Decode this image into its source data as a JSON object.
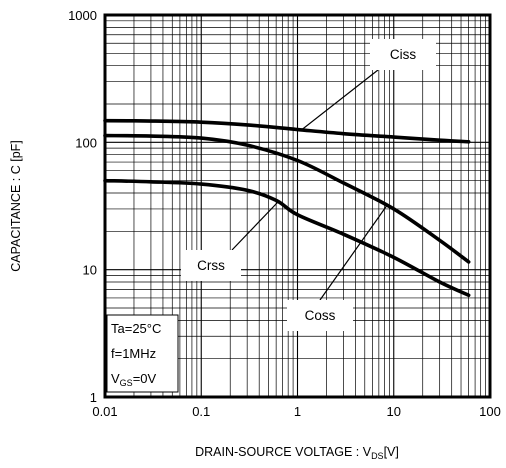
{
  "chart_data": {
    "type": "line",
    "xlabel_main": "DRAIN-SOURCE VOLTAGE : V",
    "xlabel_sub": "DS",
    "xlabel_unit": "[V]",
    "ylabel": "CAPACITANCE : C [pF]",
    "x_scale": "log",
    "y_scale": "log",
    "xlim": [
      0.01,
      100
    ],
    "ylim": [
      1,
      1000
    ],
    "grid": true,
    "x_ticks": [
      "0.01",
      "0.1",
      "1",
      "10",
      "100"
    ],
    "y_ticks": [
      "1",
      "10",
      "100",
      "1000"
    ],
    "series": [
      {
        "name": "Ciss",
        "x": [
          0.01,
          0.03,
          0.1,
          0.3,
          1,
          3,
          10,
          30,
          60
        ],
        "y": [
          148,
          147,
          144,
          137,
          126,
          117,
          110,
          104,
          101
        ]
      },
      {
        "name": "Coss",
        "x": [
          0.01,
          0.03,
          0.1,
          0.3,
          1,
          3,
          10,
          30,
          60
        ],
        "y": [
          113,
          112,
          108,
          95,
          72,
          48,
          30,
          17,
          11.5
        ]
      },
      {
        "name": "Crss",
        "x": [
          0.01,
          0.03,
          0.1,
          0.3,
          0.6,
          1,
          3,
          10,
          30,
          60
        ],
        "y": [
          50,
          49,
          47,
          42,
          35,
          27,
          19,
          12.5,
          8,
          6.3
        ]
      }
    ],
    "callouts": [
      {
        "label": "Ciss",
        "series": "Ciss"
      },
      {
        "label": "Crss",
        "series": "Crss"
      },
      {
        "label": "Coss",
        "series": "Coss"
      }
    ],
    "conditions": {
      "ta": "Ta=25°C",
      "f": "f=1MHz",
      "vgs_main": "V",
      "vgs_sub": "GS",
      "vgs_value": "=0V"
    }
  }
}
